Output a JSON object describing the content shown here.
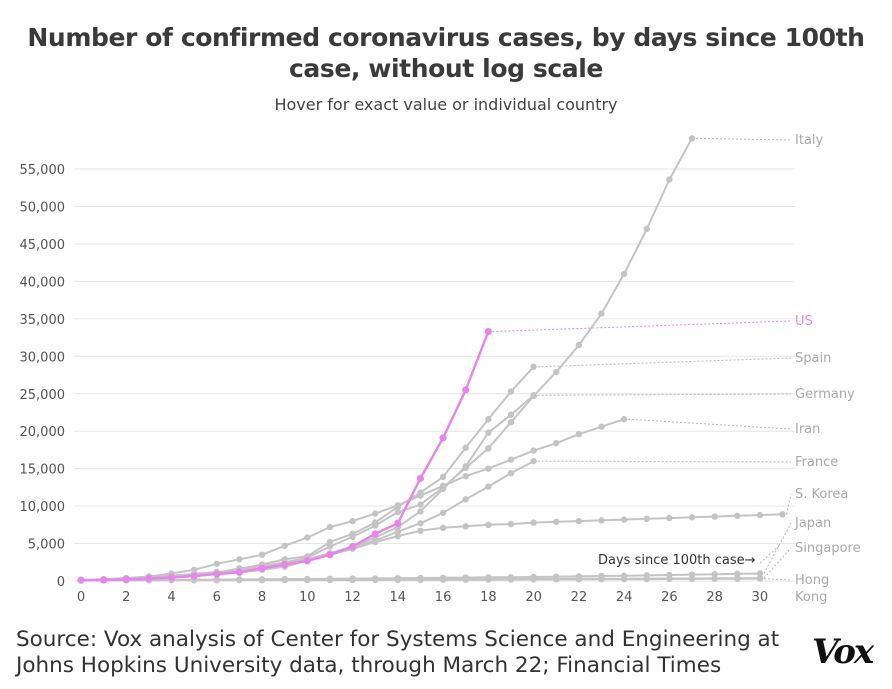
{
  "title": "Number of confirmed coronavirus cases, by days since 100th case, without log scale",
  "subtitle": "Hover for exact value or individual country",
  "source": "Source: Vox analysis of Center for Systems Science and Engineering at Johns Hopkins University data, through March 22; Financial Times",
  "logo_text": "Vox",
  "colors": {
    "highlight": "#e884ec",
    "other": "#c4c4c4",
    "grid": "#e6e6e6",
    "leader": "#b8b8b8",
    "label_other": "#aaaaaa"
  },
  "chart_data": {
    "type": "line",
    "xlabel": "",
    "ylabel": "",
    "xlim": [
      0,
      31
    ],
    "ylim": [
      0,
      55000
    ],
    "x_ticks": [
      "0",
      "2",
      "4",
      "6",
      "8",
      "10",
      "12",
      "14",
      "16",
      "18",
      "20",
      "22",
      "24",
      "26",
      "28",
      "30"
    ],
    "y_ticks": [
      "0",
      "5,000",
      "10,000",
      "15,000",
      "20,000",
      "25,000",
      "30,000",
      "35,000",
      "40,000",
      "45,000",
      "50,000",
      "55,000"
    ],
    "grid": true,
    "annotation": "Days since 100th case→",
    "series": [
      {
        "name": "Italy",
        "highlight": false,
        "values": [
          150,
          200,
          300,
          450,
          650,
          900,
          1100,
          1700,
          2000,
          2500,
          3100,
          4600,
          5900,
          7400,
          9200,
          10200,
          12500,
          15100,
          17700,
          21200,
          24700,
          27900,
          31500,
          35700,
          41000,
          47000,
          53600,
          59100
        ]
      },
      {
        "name": "Spain",
        "highlight": false,
        "values": [
          120,
          170,
          230,
          400,
          550,
          650,
          1000,
          1600,
          2200,
          2900,
          3300,
          5200,
          6300,
          7800,
          9900,
          11800,
          13900,
          17800,
          21600,
          25300,
          28600
        ]
      },
      {
        "name": "Germany",
        "highlight": false,
        "values": [
          130,
          160,
          200,
          300,
          500,
          650,
          900,
          1100,
          1500,
          1900,
          2700,
          3700,
          4600,
          5800,
          7200,
          9300,
          12300,
          15300,
          19800,
          22200,
          24800
        ]
      },
      {
        "name": "Iran",
        "highlight": false,
        "values": [
          140,
          250,
          400,
          600,
          1000,
          1500,
          2300,
          2900,
          3500,
          4700,
          5800,
          7200,
          8000,
          9000,
          10100,
          11400,
          12700,
          14000,
          15000,
          16200,
          17400,
          18400,
          19600,
          20600,
          21600
        ]
      },
      {
        "name": "France",
        "highlight": false,
        "values": [
          130,
          200,
          280,
          420,
          650,
          950,
          1200,
          1400,
          1800,
          2300,
          2900,
          3700,
          4500,
          5400,
          6600,
          7700,
          9100,
          10900,
          12600,
          14400,
          16000
        ]
      },
      {
        "name": "S. Korea",
        "highlight": false,
        "values": [
          100,
          200,
          350,
          600,
          750,
          900,
          1150,
          1600,
          1900,
          2300,
          2800,
          3500,
          4300,
          5200,
          6000,
          6700,
          7100,
          7300,
          7500,
          7600,
          7800,
          7900,
          8000,
          8100,
          8200,
          8300,
          8400,
          8500,
          8600,
          8700,
          8800,
          8900
        ]
      },
      {
        "name": "US",
        "highlight": true,
        "values": [
          100,
          130,
          220,
          340,
          470,
          650,
          950,
          1200,
          1700,
          2200,
          2700,
          3500,
          4600,
          6300,
          7700,
          13700,
          19100,
          25500,
          33300
        ]
      },
      {
        "name": "Japan",
        "highlight": false,
        "values": [
          100,
          110,
          120,
          130,
          150,
          160,
          190,
          210,
          230,
          250,
          270,
          300,
          320,
          340,
          370,
          400,
          430,
          460,
          490,
          510,
          540,
          580,
          630,
          670,
          700,
          750,
          800,
          850,
          900,
          950,
          1000
        ]
      },
      {
        "name": "Singapore",
        "highlight": false,
        "values": [
          100,
          100,
          110,
          110,
          120,
          130,
          140,
          140,
          150,
          160,
          170,
          180,
          190,
          200,
          210,
          220,
          230,
          240,
          250,
          260,
          270,
          280,
          290,
          300,
          310,
          320,
          330,
          340,
          350,
          360,
          380
        ]
      },
      {
        "name": "Hong Kong",
        "highlight": false,
        "values": [
          100,
          100,
          100,
          100,
          110,
          110,
          110,
          120,
          120,
          130,
          130,
          140,
          140,
          150,
          150,
          160,
          170,
          180,
          190,
          200,
          210,
          220,
          230,
          240,
          250,
          260,
          270,
          280,
          290,
          300,
          320
        ]
      }
    ]
  }
}
